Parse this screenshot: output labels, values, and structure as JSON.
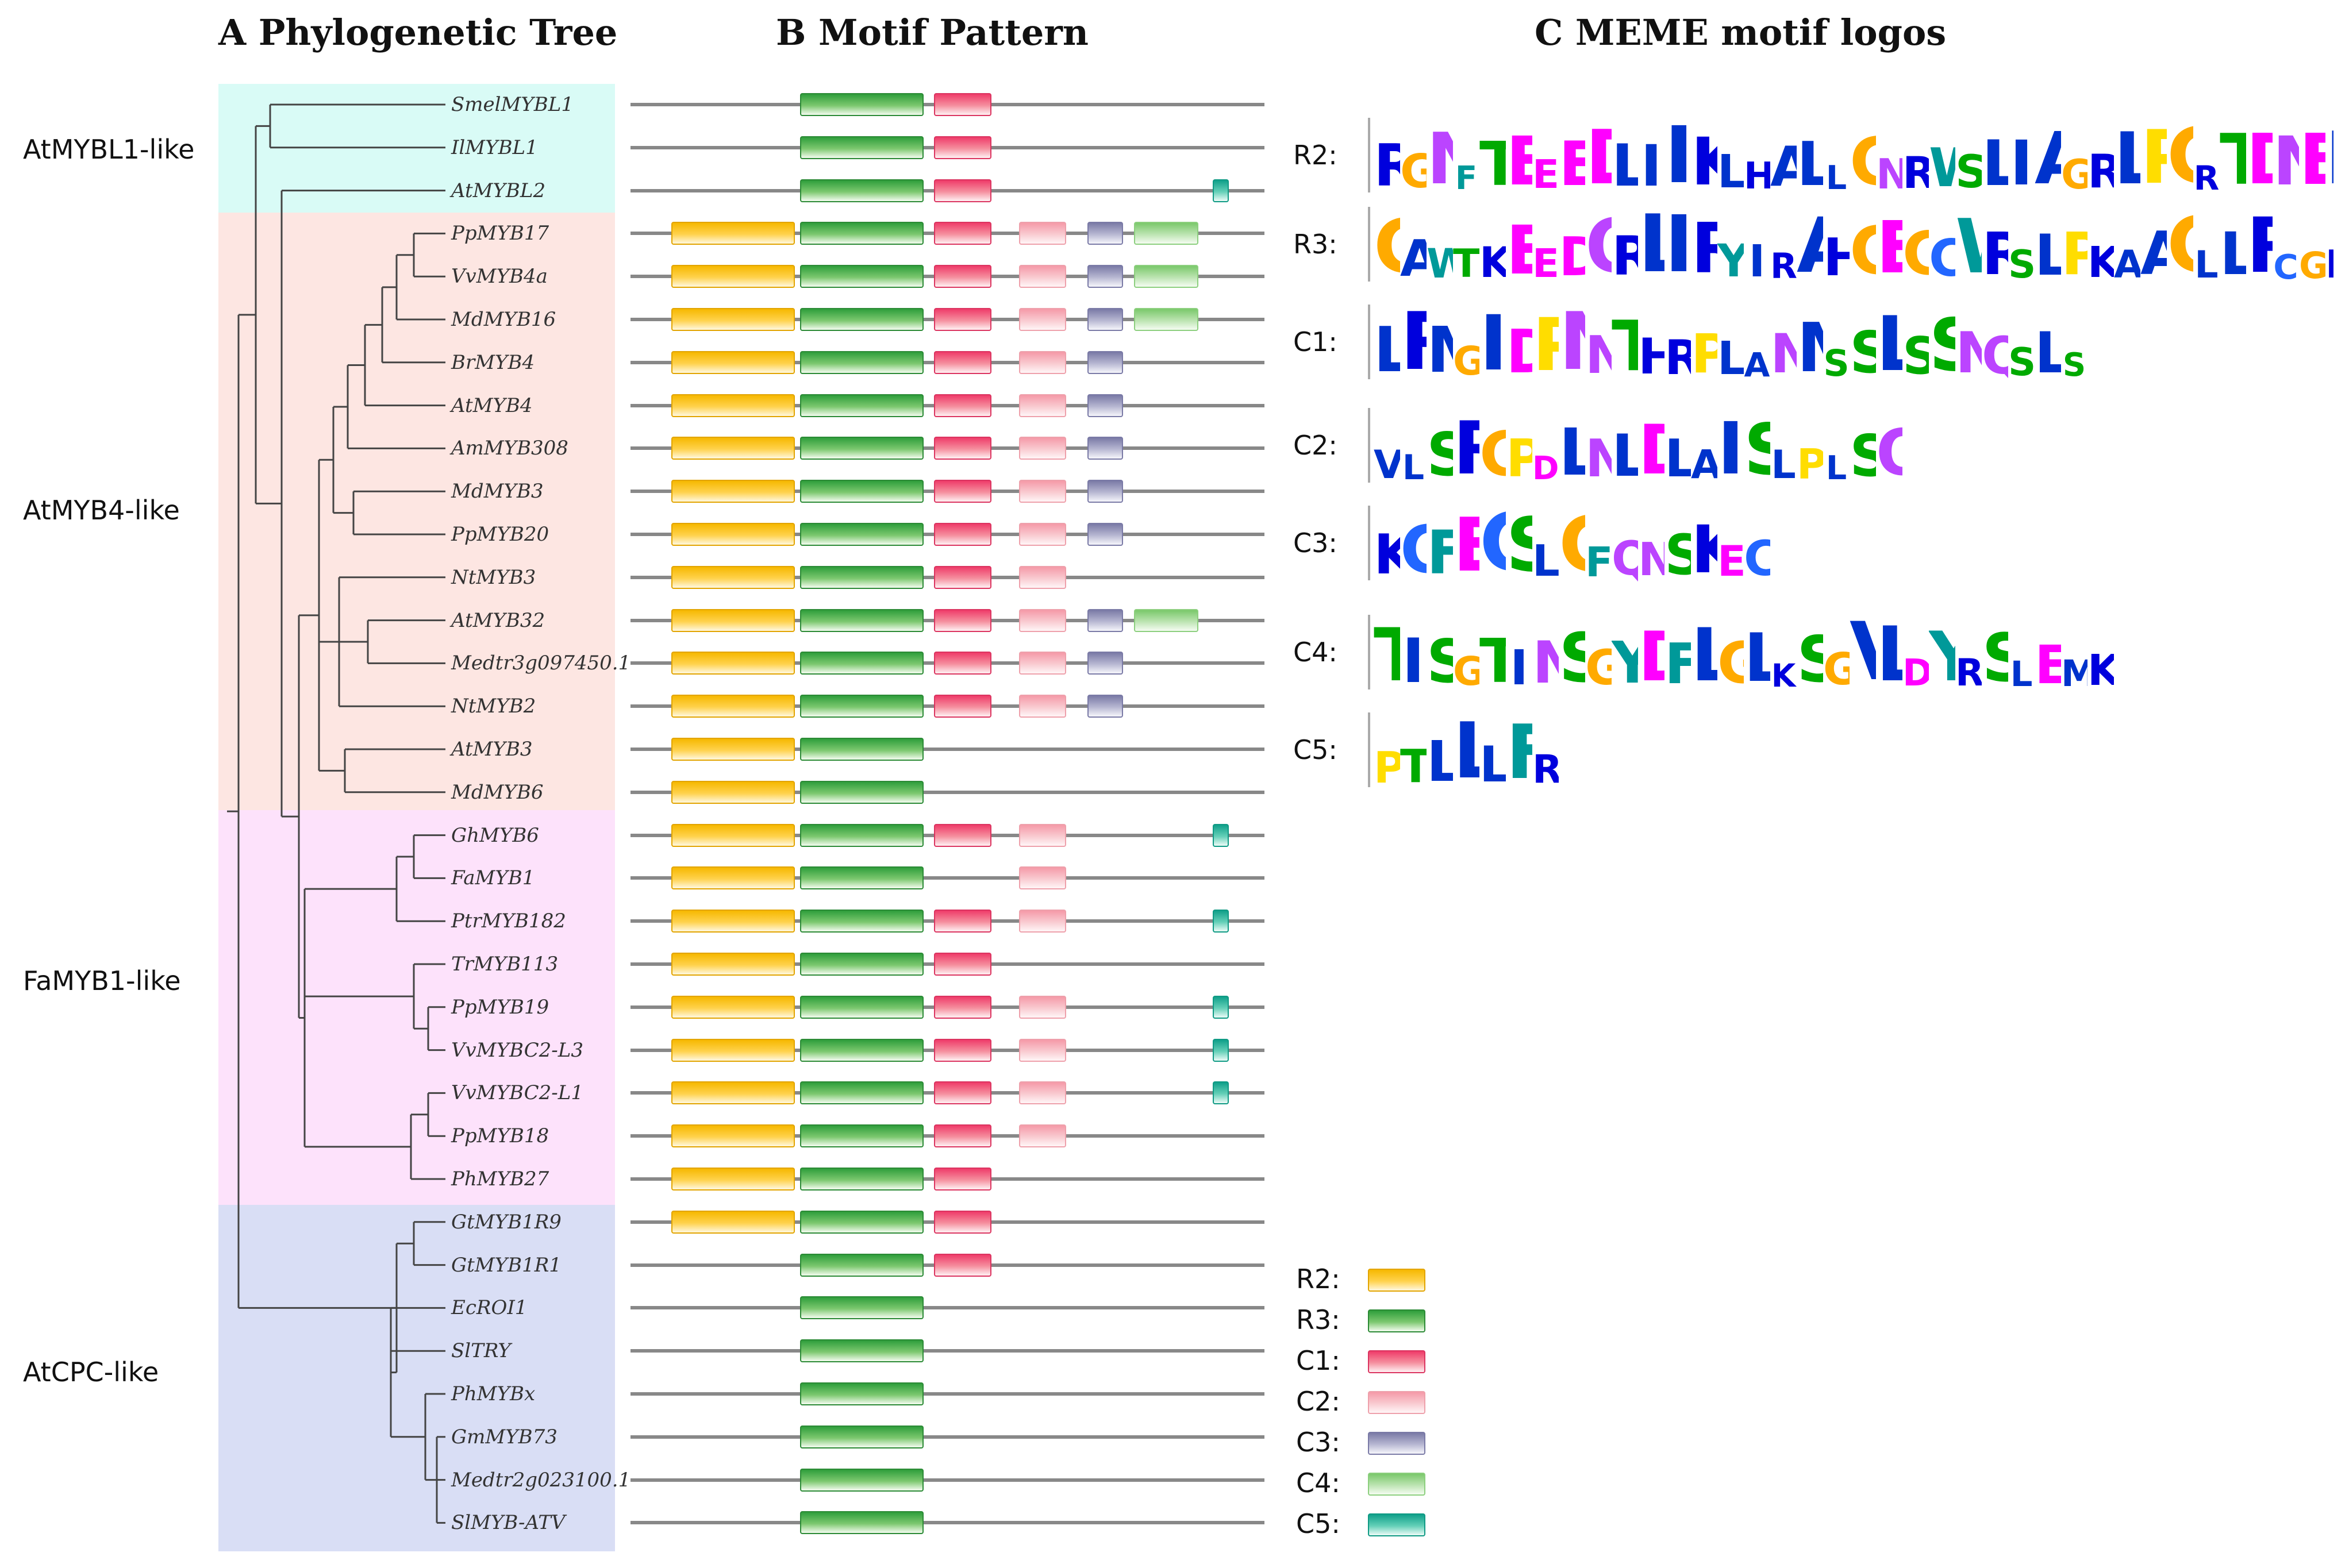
{
  "titles": {
    "a": "A Phylogenetic Tree",
    "b": "B Motif Pattern",
    "c": "C MEME motif logos"
  },
  "clades": [
    {
      "label": "AtMYBL1-like",
      "color": "#d9fbf6"
    },
    {
      "label": "AtMYB4-like",
      "color": "#fde6e2"
    },
    {
      "label": "FaMYB1-like",
      "color": "#fde2fb"
    },
    {
      "label": "AtCPC-like",
      "color": "#d9def5"
    }
  ],
  "motif_colors": {
    "R2": "#f6b800",
    "R3": "#2f9e3c",
    "C1": "#ef3c6a",
    "C2": "#f59aa8",
    "C3": "#7a7aa6",
    "C4": "#7ac86b",
    "C5": "#10a08a"
  },
  "taxa": [
    {
      "name": "SmelMYBL1",
      "motifs": [
        "R3",
        "C1"
      ]
    },
    {
      "name": "IlMYBL1",
      "motifs": [
        "R3",
        "C1"
      ]
    },
    {
      "name": "AtMYBL2",
      "motifs": [
        "R3",
        "C1",
        "C5"
      ]
    },
    {
      "name": "PpMYB17",
      "motifs": [
        "R2",
        "R3",
        "C1",
        "C2",
        "C3",
        "C4"
      ]
    },
    {
      "name": "VvMYB4a",
      "motifs": [
        "R2",
        "R3",
        "C1",
        "C2",
        "C3",
        "C4"
      ]
    },
    {
      "name": "MdMYB16",
      "motifs": [
        "R2",
        "R3",
        "C1",
        "C2",
        "C3",
        "C4"
      ]
    },
    {
      "name": "BrMYB4",
      "motifs": [
        "R2",
        "R3",
        "C1",
        "C2",
        "C3"
      ]
    },
    {
      "name": "AtMYB4",
      "motifs": [
        "R2",
        "R3",
        "C1",
        "C2",
        "C3"
      ]
    },
    {
      "name": "AmMYB308",
      "motifs": [
        "R2",
        "R3",
        "C1",
        "C2",
        "C3"
      ]
    },
    {
      "name": "MdMYB3",
      "motifs": [
        "R2",
        "R3",
        "C1",
        "C2",
        "C3"
      ]
    },
    {
      "name": "PpMYB20",
      "motifs": [
        "R2",
        "R3",
        "C1",
        "C2",
        "C3"
      ]
    },
    {
      "name": "NtMYB3",
      "motifs": [
        "R2",
        "R3",
        "C1",
        "C2"
      ]
    },
    {
      "name": "AtMYB32",
      "motifs": [
        "R2",
        "R3",
        "C1",
        "C2",
        "C3",
        "C4"
      ]
    },
    {
      "name": "Medtr3g097450.1",
      "motifs": [
        "R2",
        "R3",
        "C1",
        "C2",
        "C3"
      ]
    },
    {
      "name": "NtMYB2",
      "motifs": [
        "R2",
        "R3",
        "C1",
        "C2",
        "C3"
      ]
    },
    {
      "name": "AtMYB3",
      "motifs": [
        "R2",
        "R3"
      ]
    },
    {
      "name": "MdMYB6",
      "motifs": [
        "R2",
        "R3"
      ]
    },
    {
      "name": "GhMYB6",
      "motifs": [
        "R2",
        "R3",
        "C1",
        "C2",
        "C5"
      ]
    },
    {
      "name": "FaMYB1",
      "motifs": [
        "R2",
        "R3",
        "C2"
      ]
    },
    {
      "name": "PtrMYB182",
      "motifs": [
        "R2",
        "R3",
        "C1",
        "C2",
        "C5"
      ]
    },
    {
      "name": "TrMYB113",
      "motifs": [
        "R2",
        "R3",
        "C1"
      ]
    },
    {
      "name": "PpMYB19",
      "motifs": [
        "R2",
        "R3",
        "C1",
        "C2",
        "C5"
      ]
    },
    {
      "name": "VvMYBC2-L3",
      "motifs": [
        "R2",
        "R3",
        "C1",
        "C2",
        "C5"
      ]
    },
    {
      "name": "VvMYBC2-L1",
      "motifs": [
        "R2",
        "R3",
        "C1",
        "C2",
        "C5"
      ]
    },
    {
      "name": "PpMYB18",
      "motifs": [
        "R2",
        "R3",
        "C1",
        "C2"
      ]
    },
    {
      "name": "PhMYB27",
      "motifs": [
        "R2",
        "R3",
        "C1"
      ]
    },
    {
      "name": "GtMYB1R9",
      "motifs": [
        "R2",
        "R3",
        "C1"
      ]
    },
    {
      "name": "GtMYB1R1",
      "motifs": [
        "R3",
        "C1"
      ]
    },
    {
      "name": "EcROI1",
      "motifs": [
        "R3"
      ]
    },
    {
      "name": "SlTRY",
      "motifs": [
        "R3"
      ]
    },
    {
      "name": "PhMYBx",
      "motifs": [
        "R3"
      ]
    },
    {
      "name": "GmMYB73",
      "motifs": [
        "R3"
      ]
    },
    {
      "name": "Medtr2g023100.1",
      "motifs": [
        "R3"
      ]
    },
    {
      "name": "SlMYB-ATV",
      "motifs": [
        "R3"
      ]
    }
  ],
  "logos": [
    {
      "label": "R2:",
      "seq": "RGNFTEEEDLIIKLHALLGNRWSLIAGRLPGRTDNEIKNYWNSHLKRKL"
    },
    {
      "label": "R3:",
      "seq": "GAWTKEEDQRLIRYIRAHGEGCWRSLPKAAGLLRCGKSCRLRWINYLRPD"
    },
    {
      "label": "C1:",
      "seq": "LRMGIDPNNTHRPLANMSSLSSNQSLS"
    },
    {
      "label": "C2:",
      "seq": "VLSRGPDLNLDLAISLPLSQ"
    },
    {
      "label": "C3:",
      "seq": "KCFECSLGFQNSKEC"
    },
    {
      "label": "C4:",
      "seq": "TISGTINSGYDFLGLKSGVLDYRSLEMK"
    },
    {
      "label": "C5:",
      "seq": "PTLLLFR"
    }
  ],
  "legend": [
    {
      "label": "R2:",
      "motif": "R2"
    },
    {
      "label": "R3:",
      "motif": "R3"
    },
    {
      "label": "C1:",
      "motif": "C1"
    },
    {
      "label": "C2:",
      "motif": "C2"
    },
    {
      "label": "C3:",
      "motif": "C3"
    },
    {
      "label": "C4:",
      "motif": "C4"
    },
    {
      "label": "C5:",
      "motif": "C5"
    }
  ]
}
